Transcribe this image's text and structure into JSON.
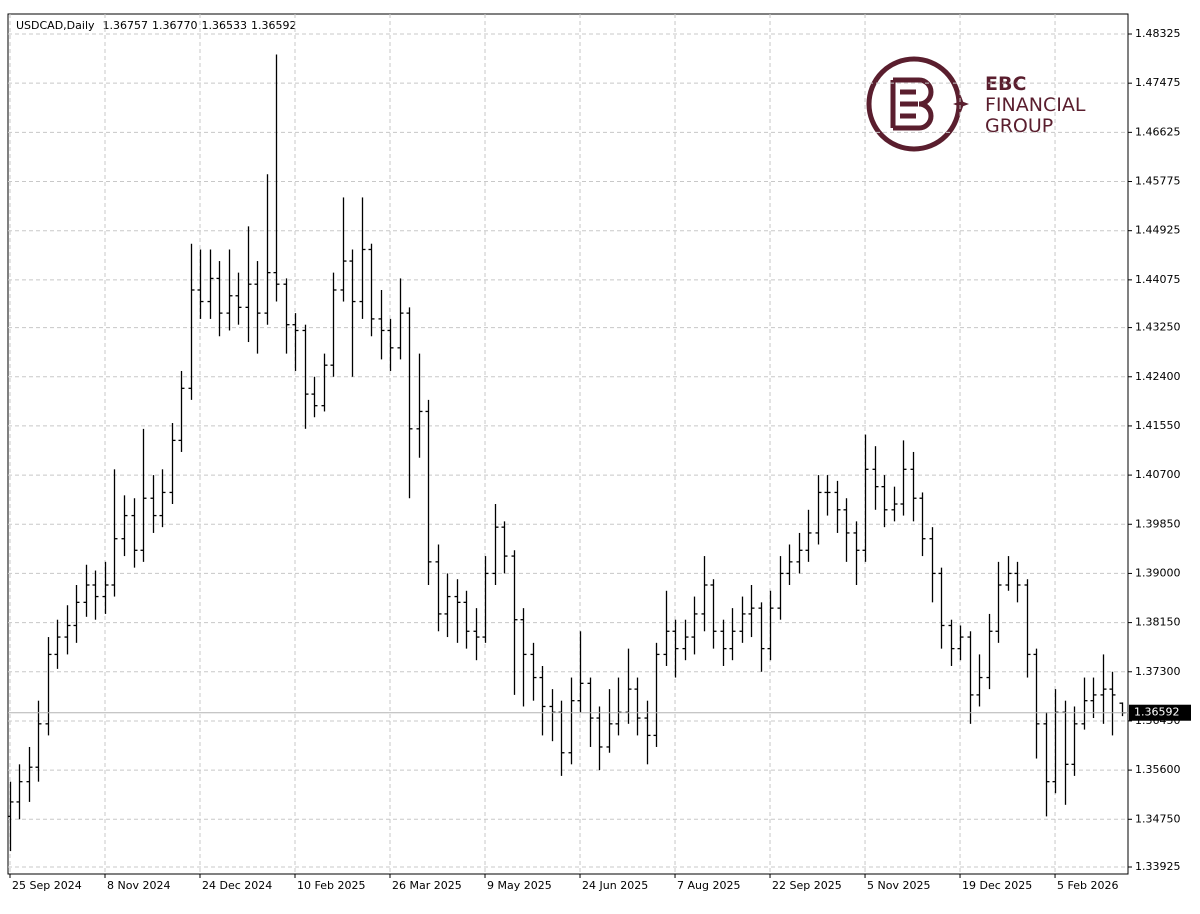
{
  "chart_data": {
    "type": "ohlc",
    "title": "USDCAD,Daily",
    "last_quote": [
      "1.36757",
      "1.36770",
      "1.36533",
      "1.36592"
    ],
    "last_price": {
      "value": 1.36592,
      "label": "1.36592"
    },
    "color": "#000000",
    "grid": true,
    "xlim": [
      -0.21,
      117.68
    ],
    "xticks": [
      {
        "value": 0,
        "label": "25 Sep 2024"
      },
      {
        "value": 10,
        "label": "8 Nov 2024"
      },
      {
        "value": 20,
        "label": "24 Dec 2024"
      },
      {
        "value": 30,
        "label": "10 Feb 2025"
      },
      {
        "value": 40,
        "label": "26 Mar 2025"
      },
      {
        "value": 50,
        "label": "9 May 2025"
      },
      {
        "value": 60,
        "label": "24 Jun 2025"
      },
      {
        "value": 70,
        "label": "7 Aug 2025"
      },
      {
        "value": 80,
        "label": "22 Sep 2025"
      },
      {
        "value": 90,
        "label": "5 Nov 2025"
      },
      {
        "value": 100,
        "label": "19 Dec 2025"
      },
      {
        "value": 110,
        "label": "5 Feb 2026"
      }
    ],
    "ylim": [
      1.33804,
      1.48671
    ],
    "yticks": [
      1.33925,
      {
        "value": 1.3475,
        "label": "1.34750"
      },
      {
        "value": 1.356,
        "label": "1.35600"
      },
      {
        "value": 1.3645,
        "label": "1.36450"
      },
      {
        "value": 1.373,
        "label": "1.37300"
      },
      {
        "value": 1.3815,
        "label": "1.38150"
      },
      {
        "value": 1.39,
        "label": "1.39000"
      },
      {
        "value": 1.3985,
        "label": "1.39850"
      },
      {
        "value": 1.407,
        "label": "1.40700"
      },
      {
        "value": 1.4155,
        "label": "1.41550"
      },
      {
        "value": 1.424,
        "label": "1.42400"
      },
      {
        "value": 1.4325,
        "label": "1.43250"
      },
      1.44075,
      1.44925,
      1.45775,
      1.46625,
      1.47475,
      1.48325
    ],
    "open": [
      1.348,
      1.3505,
      1.354,
      1.3565,
      1.364,
      1.376,
      1.379,
      1.381,
      1.385,
      1.388,
      1.386,
      1.388,
      1.396,
      1.4,
      1.394,
      1.403,
      1.4,
      1.404,
      1.413,
      1.422,
      1.439,
      1.437,
      1.441,
      1.435,
      1.438,
      1.436,
      1.44,
      1.435,
      1.442,
      1.44,
      1.433,
      1.432,
      1.421,
      1.419,
      1.426,
      1.439,
      1.444,
      1.437,
      1.446,
      1.434,
      1.432,
      1.429,
      1.435,
      1.415,
      1.418,
      1.392,
      1.383,
      1.386,
      1.385,
      1.38,
      1.379,
      1.39,
      1.398,
      1.393,
      1.382,
      1.376,
      1.372,
      1.367,
      1.366,
      1.359,
      1.368,
      1.371,
      1.365,
      1.36,
      1.364,
      1.366,
      1.37,
      1.365,
      1.362,
      1.376,
      1.38,
      1.377,
      1.379,
      1.383,
      1.388,
      1.38,
      1.377,
      1.38,
      1.383,
      1.384,
      1.377,
      1.384,
      1.39,
      1.392,
      1.394,
      1.397,
      1.404,
      1.404,
      1.401,
      1.397,
      1.394,
      1.408,
      1.405,
      1.401,
      1.402,
      1.408,
      1.403,
      1.396,
      1.39,
      1.381,
      1.377,
      1.379,
      1.369,
      1.372,
      1.38,
      1.388,
      1.39,
      1.388,
      1.376,
      1.364,
      1.354,
      1.366,
      1.357,
      1.364,
      1.368,
      1.369,
      1.37,
      1.36757
    ],
    "high": [
      1.354,
      1.357,
      1.36,
      1.368,
      1.379,
      1.382,
      1.3845,
      1.388,
      1.3915,
      1.3905,
      1.392,
      1.408,
      1.4035,
      1.403,
      1.415,
      1.407,
      1.408,
      1.416,
      1.425,
      1.447,
      1.446,
      1.446,
      1.444,
      1.446,
      1.442,
      1.45,
      1.444,
      1.459,
      1.4797,
      1.441,
      1.435,
      1.433,
      1.424,
      1.428,
      1.442,
      1.455,
      1.446,
      1.455,
      1.447,
      1.439,
      1.434,
      1.441,
      1.436,
      1.428,
      1.42,
      1.395,
      1.39,
      1.389,
      1.387,
      1.384,
      1.393,
      1.402,
      1.399,
      1.394,
      1.384,
      1.378,
      1.374,
      1.37,
      1.368,
      1.372,
      1.38,
      1.372,
      1.367,
      1.37,
      1.372,
      1.377,
      1.372,
      1.368,
      1.378,
      1.387,
      1.382,
      1.382,
      1.386,
      1.393,
      1.389,
      1.382,
      1.384,
      1.386,
      1.388,
      1.385,
      1.387,
      1.393,
      1.395,
      1.397,
      1.401,
      1.407,
      1.407,
      1.406,
      1.403,
      1.399,
      1.414,
      1.412,
      1.407,
      1.405,
      1.413,
      1.411,
      1.404,
      1.398,
      1.391,
      1.382,
      1.381,
      1.38,
      1.376,
      1.383,
      1.392,
      1.393,
      1.392,
      1.389,
      1.377,
      1.366,
      1.37,
      1.368,
      1.367,
      1.372,
      1.372,
      1.376,
      1.373,
      1.3677
    ],
    "low": [
      1.342,
      1.3475,
      1.3505,
      1.354,
      1.362,
      1.3735,
      1.376,
      1.378,
      1.3825,
      1.382,
      1.383,
      1.386,
      1.393,
      1.391,
      1.392,
      1.397,
      1.398,
      1.402,
      1.411,
      1.42,
      1.434,
      1.434,
      1.431,
      1.432,
      1.433,
      1.43,
      1.428,
      1.433,
      1.437,
      1.428,
      1.425,
      1.415,
      1.417,
      1.418,
      1.424,
      1.437,
      1.424,
      1.434,
      1.431,
      1.427,
      1.425,
      1.427,
      1.403,
      1.41,
      1.388,
      1.38,
      1.379,
      1.378,
      1.377,
      1.375,
      1.378,
      1.388,
      1.39,
      1.369,
      1.367,
      1.368,
      1.362,
      1.361,
      1.355,
      1.357,
      1.366,
      1.36,
      1.356,
      1.359,
      1.362,
      1.364,
      1.362,
      1.357,
      1.36,
      1.374,
      1.372,
      1.375,
      1.376,
      1.38,
      1.377,
      1.374,
      1.375,
      1.378,
      1.379,
      1.373,
      1.375,
      1.382,
      1.388,
      1.39,
      1.392,
      1.395,
      1.4,
      1.397,
      1.392,
      1.388,
      1.392,
      1.401,
      1.398,
      1.399,
      1.4,
      1.399,
      1.393,
      1.385,
      1.377,
      1.374,
      1.375,
      1.364,
      1.367,
      1.37,
      1.378,
      1.387,
      1.385,
      1.372,
      1.358,
      1.348,
      1.352,
      1.35,
      1.355,
      1.363,
      1.365,
      1.364,
      1.362,
      1.36533
    ],
    "close": [
      1.3505,
      1.354,
      1.3565,
      1.364,
      1.376,
      1.379,
      1.381,
      1.385,
      1.388,
      1.386,
      1.388,
      1.396,
      1.4,
      1.394,
      1.403,
      1.4,
      1.404,
      1.413,
      1.422,
      1.439,
      1.437,
      1.441,
      1.435,
      1.438,
      1.436,
      1.44,
      1.435,
      1.442,
      1.44,
      1.433,
      1.432,
      1.421,
      1.419,
      1.426,
      1.439,
      1.444,
      1.437,
      1.446,
      1.434,
      1.432,
      1.429,
      1.435,
      1.415,
      1.418,
      1.392,
      1.383,
      1.386,
      1.385,
      1.38,
      1.379,
      1.39,
      1.398,
      1.393,
      1.382,
      1.376,
      1.372,
      1.367,
      1.366,
      1.359,
      1.368,
      1.371,
      1.365,
      1.36,
      1.364,
      1.366,
      1.37,
      1.365,
      1.362,
      1.376,
      1.38,
      1.377,
      1.379,
      1.383,
      1.388,
      1.38,
      1.377,
      1.38,
      1.383,
      1.384,
      1.377,
      1.384,
      1.39,
      1.392,
      1.394,
      1.397,
      1.404,
      1.404,
      1.401,
      1.397,
      1.394,
      1.408,
      1.405,
      1.401,
      1.402,
      1.408,
      1.403,
      1.396,
      1.39,
      1.381,
      1.377,
      1.379,
      1.369,
      1.372,
      1.38,
      1.388,
      1.39,
      1.388,
      1.376,
      1.364,
      1.354,
      1.366,
      1.357,
      1.364,
      1.368,
      1.369,
      1.37,
      1.369,
      1.36592
    ]
  },
  "logo": {
    "line1": "EBC",
    "line2": "FINANCIAL",
    "line3": "GROUP"
  }
}
